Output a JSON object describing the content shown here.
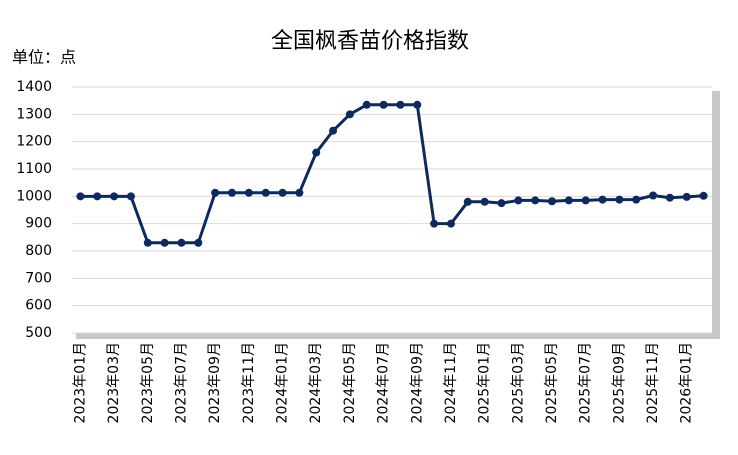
{
  "chart_data": {
    "type": "line",
    "title": "全国枫香苗价格指数",
    "y_label": "单位：点",
    "categories": [
      "2023年01月",
      null,
      "2023年03月",
      null,
      "2023年05月",
      null,
      "2023年07月",
      null,
      "2023年09月",
      null,
      "2023年11月",
      null,
      "2024年01月",
      null,
      "2024年03月",
      null,
      "2024年05月",
      null,
      "2024年07月",
      null,
      "2024年09月",
      null,
      "2024年11月",
      null,
      "2025年01月",
      null,
      "2025年03月",
      null,
      "2025年05月",
      null,
      "2025年07月",
      null,
      "2025年09月",
      null,
      "2025年11月",
      null,
      "2026年01月",
      null
    ],
    "series": [
      {
        "name": "全国枫香苗价格指数",
        "color": "#0d2a5f",
        "values": [
          1000,
          1000,
          1000,
          1000,
          830,
          830,
          830,
          830,
          1013,
          1013,
          1013,
          1013,
          1013,
          1013,
          1160,
          1240,
          1300,
          1335,
          1335,
          1335,
          1335,
          900,
          900,
          980,
          980,
          975,
          985,
          985,
          982,
          985,
          985,
          988,
          988,
          988,
          1003,
          995,
          998,
          1002
        ]
      }
    ],
    "ylim": [
      500,
      1400
    ],
    "yticks": [
      500,
      600,
      700,
      800,
      900,
      1000,
      1100,
      1200,
      1300,
      1400
    ],
    "grid": true
  }
}
